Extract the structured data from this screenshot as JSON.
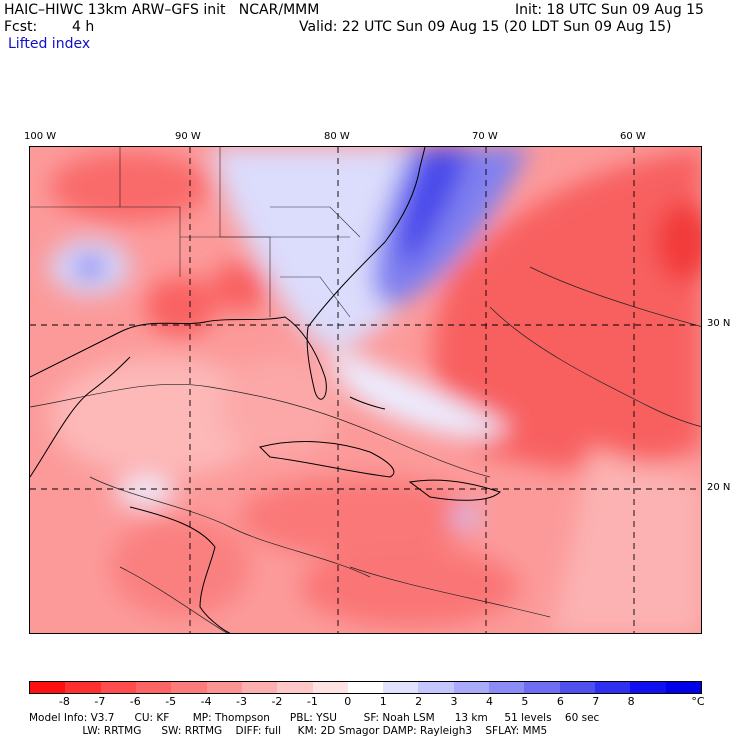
{
  "header": {
    "title": "HAIC–HIWC 13km ARW–GFS init   NCAR/MMM",
    "init": "Init: 18 UTC Sun 09 Aug 15",
    "fcst_label": "Fcst:",
    "fcst_value": "4 h",
    "valid": "Valid: 22 UTC Sun 09 Aug 15 (20 LDT Sun 09 Aug 15)",
    "field": "Lifted index"
  },
  "map": {
    "lon_labels": [
      "100 W",
      "90 W",
      "80 W",
      "70 W",
      "60 W"
    ],
    "lat_labels": [
      "30 N",
      "20 N"
    ]
  },
  "colorbar": {
    "ticks": [
      "-8",
      "-7",
      "-6",
      "-5",
      "-4",
      "-3",
      "-2",
      "-1",
      "0",
      "1",
      "2",
      "3",
      "4",
      "5",
      "6",
      "7",
      "8"
    ],
    "unit": "°C",
    "colors": [
      "#ff1010",
      "#ff3030",
      "#ff4c4c",
      "#fd6565",
      "#fc7c7c",
      "#fc9494",
      "#fdaeae",
      "#fec8c8",
      "#ffe2e2",
      "#ffffff",
      "#e2e2ff",
      "#c6c6ff",
      "#aaaafc",
      "#8c8cf6",
      "#6e6ef2",
      "#5050ee",
      "#3030f0",
      "#1010f0",
      "#0000e8"
    ]
  },
  "footer": {
    "line1": "Model Info: V3.7      CU: KF       MP: Thompson      PBL: YSU        SF: Noah LSM      13 km     51 levels    60 sec",
    "line2": "                LW: RRTMG      SW: RRTMG    DIFF: full     KM: 2D Smagor DAMP: Rayleigh3    SFLAY: MM5"
  }
}
